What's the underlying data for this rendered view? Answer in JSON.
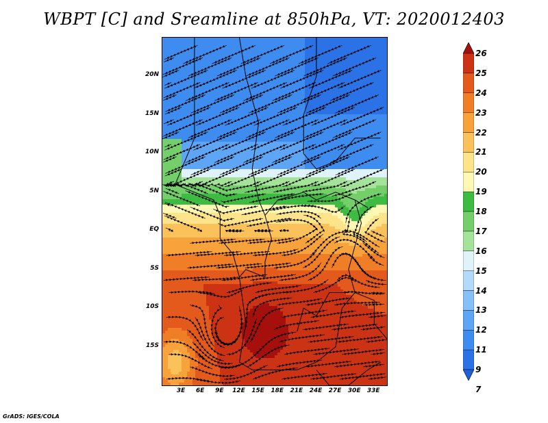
{
  "title": "WBPT [C] and Sreamline at 850hPa, VT: 2020012403",
  "credit": "GrADS: IGES/COLA",
  "lat_labels": [
    "20N",
    "15N",
    "10N",
    "5N",
    "EQ",
    "5S",
    "10S",
    "15S"
  ],
  "lat_values": [
    20,
    15,
    10,
    5,
    0,
    -5,
    -10,
    -15
  ],
  "lon_labels": [
    "3E",
    "6E",
    "9E",
    "12E",
    "15E",
    "18E",
    "21E",
    "24E",
    "27E",
    "30E",
    "33E"
  ],
  "lon_values": [
    3,
    6,
    9,
    12,
    15,
    18,
    21,
    24,
    27,
    30,
    33
  ],
  "domain": {
    "lon_min": 0,
    "lon_max": 35,
    "lat_min": -20,
    "lat_max": 25
  },
  "colorbar": {
    "levels": [
      "7",
      "9",
      "11",
      "12",
      "13",
      "14",
      "15",
      "16",
      "17",
      "18",
      "19",
      "20",
      "21",
      "22",
      "23",
      "24",
      "25",
      "26"
    ],
    "colors": [
      "#1f5fd8",
      "#2b72e6",
      "#3f8cf0",
      "#5ea6f5",
      "#86c0f8",
      "#b4dafb",
      "#e0f3fb",
      "#a6e39a",
      "#74cf6a",
      "#3ebb42",
      "#fff8b4",
      "#fde38a",
      "#fbc25c",
      "#f7a23a",
      "#f07e26",
      "#e35a1c",
      "#cc3214",
      "#a5100c"
    ]
  },
  "colors": {
    "land_low": "#1f5fd8",
    "land_high": "#e35a1c",
    "border": "#000000",
    "stream": "#000000"
  }
}
